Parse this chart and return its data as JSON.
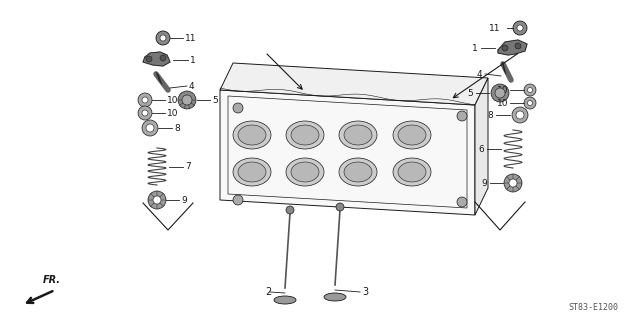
{
  "bg_color": "#ffffff",
  "line_color": "#1a1a1a",
  "gray_color": "#555555",
  "fig_width": 6.37,
  "fig_height": 3.2,
  "dpi": 100,
  "diagram_code": "ST83-E1200"
}
